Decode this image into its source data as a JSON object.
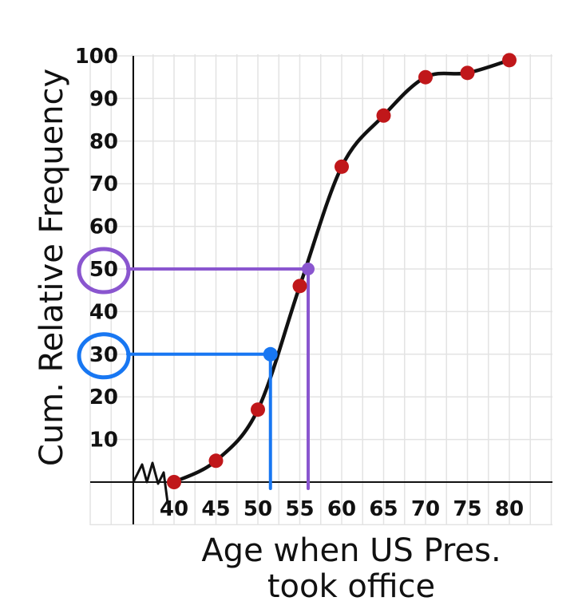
{
  "chart_data": {
    "type": "line",
    "title": "",
    "xlabel": "Age when US Pres. took office",
    "xlabel_lines": [
      "Age when US Pres.",
      "took office"
    ],
    "ylabel": "Cum. Relative Frequency",
    "x_ticks": [
      "40",
      "45",
      "50",
      "55",
      "60",
      "65",
      "70",
      "75",
      "80"
    ],
    "y_ticks": [
      "10",
      "20",
      "30",
      "40",
      "50",
      "60",
      "70",
      "80",
      "90",
      "100"
    ],
    "xlim": [
      35,
      80
    ],
    "ylim": [
      0,
      100
    ],
    "axis_break": true,
    "grid": true,
    "series": [
      {
        "type": "line",
        "x": [
          40,
          45,
          50,
          55,
          60,
          65,
          70,
          75,
          80
        ],
        "y": [
          0,
          5,
          17,
          46,
          74,
          86,
          95,
          96,
          99
        ]
      }
    ],
    "annotations": [
      {
        "label": "30",
        "y": 30,
        "x": 51.5,
        "color": "#1877f2",
        "circled": true
      },
      {
        "label": "50",
        "y": 50,
        "x": 56,
        "color": "#8a56cf",
        "circled": true
      }
    ],
    "colors": {
      "curve": "#111111",
      "points": "#c0171a",
      "grid": "#e3e3e3",
      "axis": "#111111"
    }
  }
}
